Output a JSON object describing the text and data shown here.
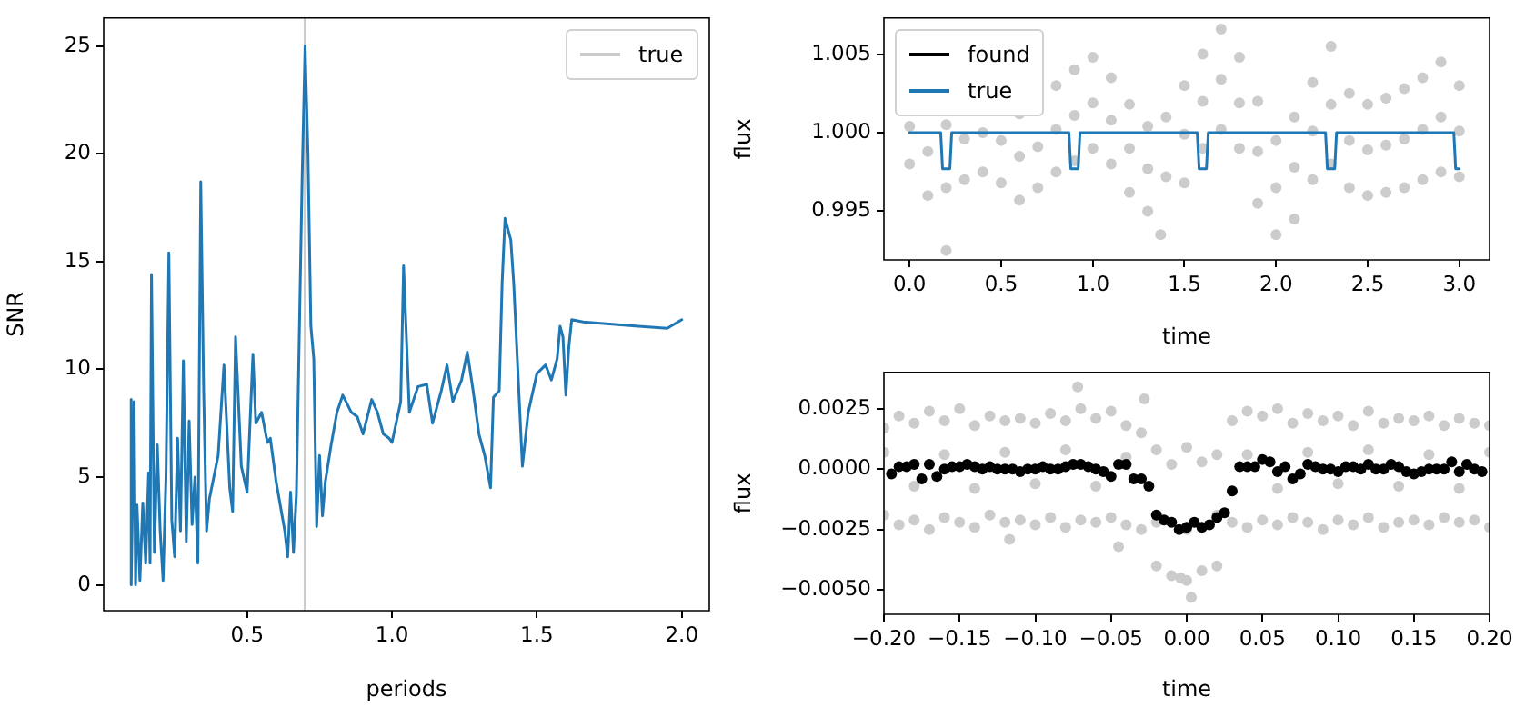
{
  "chart_data": [
    {
      "type": "line",
      "xlabel": "periods",
      "ylabel": "SNR",
      "xlim": [
        0.005,
        2.095
      ],
      "ylim": [
        -1.2,
        26.3
      ],
      "xticks": [
        0.5,
        {
          "value": 1.0,
          "label": "1.0"
        },
        1.5,
        {
          "value": 2.0,
          "label": "2.0"
        }
      ],
      "yticks": [
        0,
        5,
        10,
        15,
        20,
        25
      ],
      "legend": "top right",
      "series": [
        {
          "name": "true",
          "color": "#cccccc",
          "x": [
            0.7,
            0.7
          ],
          "values": [
            -1.2,
            26.3
          ]
        },
        {
          "color": "#1f77b4",
          "x": [
            0.1,
            0.1,
            0.11,
            0.115,
            0.12,
            0.13,
            0.14,
            0.15,
            0.16,
            0.165,
            0.17,
            0.18,
            0.19,
            0.2,
            0.21,
            0.22,
            0.23,
            0.24,
            0.25,
            0.26,
            0.27,
            0.28,
            0.29,
            0.3,
            0.31,
            0.32,
            0.33,
            0.34,
            0.35,
            0.36,
            0.37,
            0.4,
            0.42,
            0.44,
            0.45,
            0.46,
            0.48,
            0.5,
            0.52,
            0.53,
            0.55,
            0.57,
            0.58,
            0.6,
            0.63,
            0.64,
            0.65,
            0.66,
            0.67,
            0.69,
            0.7,
            0.71,
            0.72,
            0.73,
            0.74,
            0.75,
            0.76,
            0.77,
            0.79,
            0.81,
            0.83,
            0.86,
            0.88,
            0.9,
            0.93,
            0.95,
            0.97,
            0.99,
            1.0,
            1.03,
            1.04,
            1.06,
            1.09,
            1.12,
            1.14,
            1.17,
            1.19,
            1.21,
            1.24,
            1.26,
            1.28,
            1.3,
            1.32,
            1.34,
            1.35,
            1.37,
            1.38,
            1.39,
            1.41,
            1.42,
            1.45,
            1.47,
            1.5,
            1.53,
            1.55,
            1.57,
            1.58,
            1.59,
            1.6,
            1.61,
            1.62,
            1.66,
            1.75,
            1.85,
            1.95,
            2.0
          ],
          "values": [
            8.6,
            0,
            8.5,
            0,
            3.7,
            0.2,
            3.8,
            1,
            5.2,
            1,
            14.4,
            1.5,
            6.5,
            2.5,
            0.2,
            5,
            15.4,
            3,
            1.3,
            6.8,
            2.5,
            10.4,
            2,
            7.6,
            2.8,
            5,
            1,
            18.7,
            9,
            2.5,
            4,
            6,
            10.2,
            4.5,
            3.4,
            11.5,
            5.5,
            4.3,
            10.7,
            7.5,
            8,
            6.6,
            6.8,
            4.8,
            2.5,
            1.3,
            4.3,
            1.5,
            4.2,
            19,
            25,
            20,
            12,
            10.5,
            2.7,
            6,
            3.2,
            4.8,
            6.5,
            8,
            8.8,
            8,
            7.8,
            7,
            8.6,
            8,
            7,
            6.8,
            6.6,
            8.5,
            14.8,
            8,
            9.2,
            9.3,
            7.5,
            9,
            10.2,
            8.5,
            9.5,
            10.8,
            9,
            7,
            6,
            4.5,
            8.7,
            9,
            14,
            17,
            16,
            14,
            5.5,
            8,
            9.8,
            10.2,
            9.5,
            10.5,
            12,
            11.5,
            8.8,
            11,
            12.3,
            12.2,
            12.1,
            12.0,
            11.9,
            12.3
          ]
        }
      ]
    },
    {
      "type": "line",
      "xlabel": "time",
      "ylabel": "flux",
      "xlim": [
        -0.14,
        3.165
      ],
      "ylim": [
        0.9919,
        1.0073
      ],
      "xticks": [
        {
          "value": 0,
          "label": "0.0"
        },
        0.5,
        {
          "value": 1,
          "label": "1.0"
        },
        1.5,
        {
          "value": 2,
          "label": "2.0"
        },
        2.5,
        {
          "value": 3,
          "label": "3.0"
        }
      ],
      "yticks": [
        0.995,
        {
          "value": 1,
          "label": "1.000"
        },
        1.005
      ],
      "legend": "top left",
      "series": [
        {
          "type": "scatter",
          "color": "#cccccc",
          "x": [
            0.2,
            0.6,
            0.8,
            0.9,
            1.0,
            1.1,
            1.2,
            1.3,
            1.4,
            1.5,
            1.6,
            1.7,
            1.8,
            1.9,
            2.0,
            2.1,
            2.2,
            2.3,
            2.4,
            2.5,
            2.6,
            2.7,
            2.8,
            2.9,
            3.0,
            0,
            0.1,
            0.2,
            0.3,
            0.4,
            0.5,
            0.6,
            0.7,
            0.8,
            0.9,
            1.0,
            1.1,
            1.2,
            1.3,
            1.37,
            1.5,
            1.6,
            1.7,
            1.8,
            1.9,
            2.0,
            2.1,
            2.2,
            2.3,
            2.4,
            2.5,
            2.6,
            2.7,
            2.8,
            2.9,
            3.0,
            0,
            0.1,
            0.2,
            0.3,
            0.4,
            0.5,
            0.6,
            0.7,
            0.8,
            0.9,
            1.0,
            1.1,
            1.2,
            1.3,
            1.4,
            1.5,
            1.6,
            1.7,
            1.8,
            1.9,
            2.0,
            2.1,
            2.2,
            2.3,
            2.4,
            2.5,
            2.6,
            2.7,
            2.8,
            2.9,
            3.0
          ],
          "values": [
            1.0005,
            1.0012,
            1.003,
            1.004,
            1.0048,
            1.0035,
            1.0018,
            1.0004,
            1.001,
            1.003,
            1.005,
            1.0066,
            1.0048,
            1.002,
            0.9995,
            1.001,
            1.0032,
            1.0055,
            1.0025,
            1.0018,
            1.0022,
            1.0028,
            1.0035,
            1.0045,
            1.003,
            0.998,
            0.996,
            0.9925,
            0.997,
            0.9975,
            0.9968,
            0.9957,
            0.9965,
            0.9975,
            0.9982,
            0.999,
            0.998,
            0.9962,
            0.995,
            0.9935,
            0.9968,
            0.999,
            1.0002,
            0.999,
            0.9955,
            0.9935,
            0.9945,
            0.997,
            0.998,
            0.9965,
            0.996,
            0.9962,
            0.9965,
            0.997,
            0.9975,
            0.9972,
            1.0004,
            0.9988,
            0.9965,
            0.9996,
            1.0,
            0.9995,
            0.9985,
            0.9991,
            1.0002,
            1.0011,
            1.0019,
            1.0008,
            0.999,
            0.9977,
            0.9972,
            0.9999,
            1.002,
            1.0034,
            1.0019,
            0.9988,
            0.9965,
            0.9978,
            1.0001,
            1.0018,
            0.9995,
            0.9989,
            0.9992,
            0.9996,
            1.0002,
            1.001,
            1.0001
          ]
        },
        {
          "name": "found",
          "color": "#000000"
        },
        {
          "name": "true",
          "color": "#1f77b4",
          "x": [
            0,
            0.17,
            0.18,
            0.22,
            0.23,
            0.87,
            0.88,
            0.92,
            0.93,
            1.57,
            1.58,
            1.62,
            1.63,
            2.27,
            2.28,
            2.32,
            2.33,
            2.97,
            2.98,
            3.0
          ],
          "values": [
            1,
            1,
            0.9977,
            0.9977,
            1,
            1,
            0.9977,
            0.9977,
            1,
            1,
            0.9977,
            0.9977,
            1,
            1,
            0.9977,
            0.9977,
            1,
            1,
            0.9977,
            0.9977
          ]
        }
      ]
    },
    {
      "type": "scatter",
      "xlabel": "time",
      "ylabel": "flux",
      "xlim": [
        -0.2,
        0.2
      ],
      "ylim": [
        -0.006,
        0.004
      ],
      "xticks": [
        {
          "value": -0.2,
          "label": "−0.20"
        },
        {
          "value": -0.15,
          "label": "−0.15"
        },
        {
          "value": -0.1,
          "label": "−0.10"
        },
        {
          "value": -0.05,
          "label": "−0.05"
        },
        {
          "value": 0,
          "label": "0.00"
        },
        {
          "value": 0.05,
          "label": "0.05"
        },
        {
          "value": 0.1,
          "label": "0.10"
        },
        {
          "value": 0.15,
          "label": "0.15"
        },
        {
          "value": 0.2,
          "label": "0.20"
        }
      ],
      "yticks": [
        {
          "value": -0.005,
          "label": "−0.0050"
        },
        {
          "value": -0.0025,
          "label": "−0.0025"
        },
        {
          "value": 0,
          "label": "0.0000"
        },
        {
          "value": 0.0025,
          "label": "0.0025"
        }
      ],
      "series": [
        {
          "color": "#cccccc",
          "x": [
            -0.2,
            -0.19,
            -0.18,
            -0.17,
            -0.16,
            -0.15,
            -0.14,
            -0.13,
            -0.12,
            -0.11,
            -0.1,
            -0.09,
            -0.08,
            -0.07,
            -0.06,
            -0.05,
            -0.04,
            -0.03,
            -0.02,
            -0.01,
            0,
            0.01,
            0.02,
            0.03,
            0.04,
            0.05,
            0.06,
            0.07,
            0.08,
            0.09,
            0.1,
            0.11,
            0.12,
            0.13,
            0.14,
            0.15,
            0.16,
            0.17,
            0.18,
            0.19,
            0.2,
            -0.2,
            -0.19,
            -0.18,
            -0.17,
            -0.16,
            -0.15,
            -0.14,
            -0.13,
            -0.12,
            -0.11,
            -0.1,
            -0.09,
            -0.08,
            -0.07,
            -0.06,
            -0.05,
            -0.04,
            -0.03,
            -0.02,
            -0.01,
            0,
            0.01,
            0.02,
            0.03,
            0.04,
            0.05,
            0.06,
            0.07,
            0.08,
            0.09,
            0.1,
            0.11,
            0.12,
            0.13,
            0.14,
            0.15,
            0.16,
            0.17,
            0.18,
            0.19,
            0.2,
            -0.2,
            -0.18,
            -0.16,
            -0.14,
            -0.12,
            -0.1,
            -0.08,
            -0.06,
            -0.04,
            -0.02,
            0,
            0.02,
            0.04,
            0.06,
            0.08,
            0.1,
            0.12,
            0.14,
            0.16,
            0.18,
            0.2,
            -0.072,
            -0.117,
            -0.045,
            0.003,
            -0.004,
            -0.028
          ],
          "values": [
            0.0017,
            0.0022,
            0.0019,
            0.0024,
            0.002,
            0.0025,
            0.0018,
            0.0022,
            0.002,
            0.0021,
            0.0019,
            0.0023,
            0.002,
            0.0025,
            0.0021,
            0.0024,
            0.0018,
            0.0015,
            0.0008,
            0.0002,
            0.0009,
            0.0003,
            0.0006,
            0.002,
            0.0024,
            0.0022,
            0.0025,
            0.0019,
            0.0023,
            0.002,
            0.0022,
            0.0018,
            0.0024,
            0.0019,
            0.0021,
            0.002,
            0.0022,
            0.0018,
            0.0021,
            0.0019,
            0.0018,
            -0.0019,
            -0.0023,
            -0.0021,
            -0.0025,
            -0.002,
            -0.0022,
            -0.0024,
            -0.0019,
            -0.0022,
            -0.0021,
            -0.0023,
            -0.002,
            -0.0024,
            -0.0021,
            -0.0022,
            -0.002,
            -0.0023,
            -0.0025,
            -0.004,
            -0.0044,
            -0.0046,
            -0.0042,
            -0.004,
            -0.0022,
            -0.0024,
            -0.0021,
            -0.0023,
            -0.002,
            -0.0022,
            -0.0025,
            -0.0021,
            -0.0023,
            -0.002,
            -0.0024,
            -0.0022,
            -0.0021,
            -0.0023,
            -0.002,
            -0.0022,
            -0.0021,
            -0.0024,
            0.0007,
            -0.0007,
            0.0006,
            -0.0008,
            0.0007,
            -0.0006,
            0.0008,
            -0.0007,
            0.0005,
            -0.0022,
            -0.0025,
            -0.0019,
            0.0006,
            -0.0008,
            0.0007,
            -0.0006,
            0.0008,
            -0.0007,
            0.0006,
            -0.0008,
            0.0007,
            0.0034,
            -0.0029,
            -0.0032,
            -0.0053,
            -0.0045,
            0.0029
          ]
        },
        {
          "color": "#000000",
          "x": [
            -0.195,
            -0.19,
            -0.185,
            -0.18,
            -0.175,
            -0.17,
            -0.165,
            -0.16,
            -0.155,
            -0.15,
            -0.145,
            -0.14,
            -0.135,
            -0.13,
            -0.125,
            -0.12,
            -0.115,
            -0.11,
            -0.105,
            -0.1,
            -0.095,
            -0.09,
            -0.085,
            -0.08,
            -0.075,
            -0.07,
            -0.065,
            -0.06,
            -0.055,
            -0.05,
            -0.045,
            -0.04,
            -0.035,
            -0.03,
            -0.025,
            -0.02,
            -0.015,
            -0.01,
            -0.005,
            0,
            0.005,
            0.01,
            0.015,
            0.02,
            0.025,
            0.03,
            0.035,
            0.04,
            0.045,
            0.05,
            0.055,
            0.06,
            0.065,
            0.07,
            0.075,
            0.08,
            0.085,
            0.09,
            0.095,
            0.1,
            0.105,
            0.11,
            0.115,
            0.12,
            0.125,
            0.13,
            0.135,
            0.14,
            0.145,
            0.15,
            0.155,
            0.16,
            0.165,
            0.17,
            0.175,
            0.18,
            0.185,
            0.19,
            0.195
          ],
          "values": [
            -0.0002,
            0.0001,
            0.0001,
            0.0002,
            -0.0004,
            0.0002,
            -0.0003,
            0,
            0.0001,
            0.0001,
            0.0002,
            0.0001,
            0,
            0.0001,
            0,
            0,
            0,
            -0.0001,
            0,
            0,
            0.0001,
            0,
            0,
            0.0001,
            0.0002,
            0.0002,
            0.0001,
            0,
            -0.0001,
            -0.0003,
            0.0002,
            0.0002,
            -0.0004,
            -0.0004,
            -0.0007,
            -0.0019,
            -0.0021,
            -0.0022,
            -0.0025,
            -0.0024,
            -0.0022,
            -0.0024,
            -0.0023,
            -0.002,
            -0.0018,
            -0.0009,
            0.0001,
            0.0001,
            0.0001,
            0.0004,
            0.0003,
            -0.0001,
            0.0001,
            -0.0004,
            -0.0002,
            0.0002,
            0.0001,
            0,
            0,
            -0.0001,
            0.0001,
            0.0001,
            0,
            0.0002,
            0,
            0,
            0.0002,
            0.0001,
            -0.0001,
            -0.0002,
            -0.0001,
            0,
            0,
            0,
            0.0003,
            -0.0001,
            0.0002,
            0,
            -0.0001
          ]
        }
      ]
    }
  ]
}
